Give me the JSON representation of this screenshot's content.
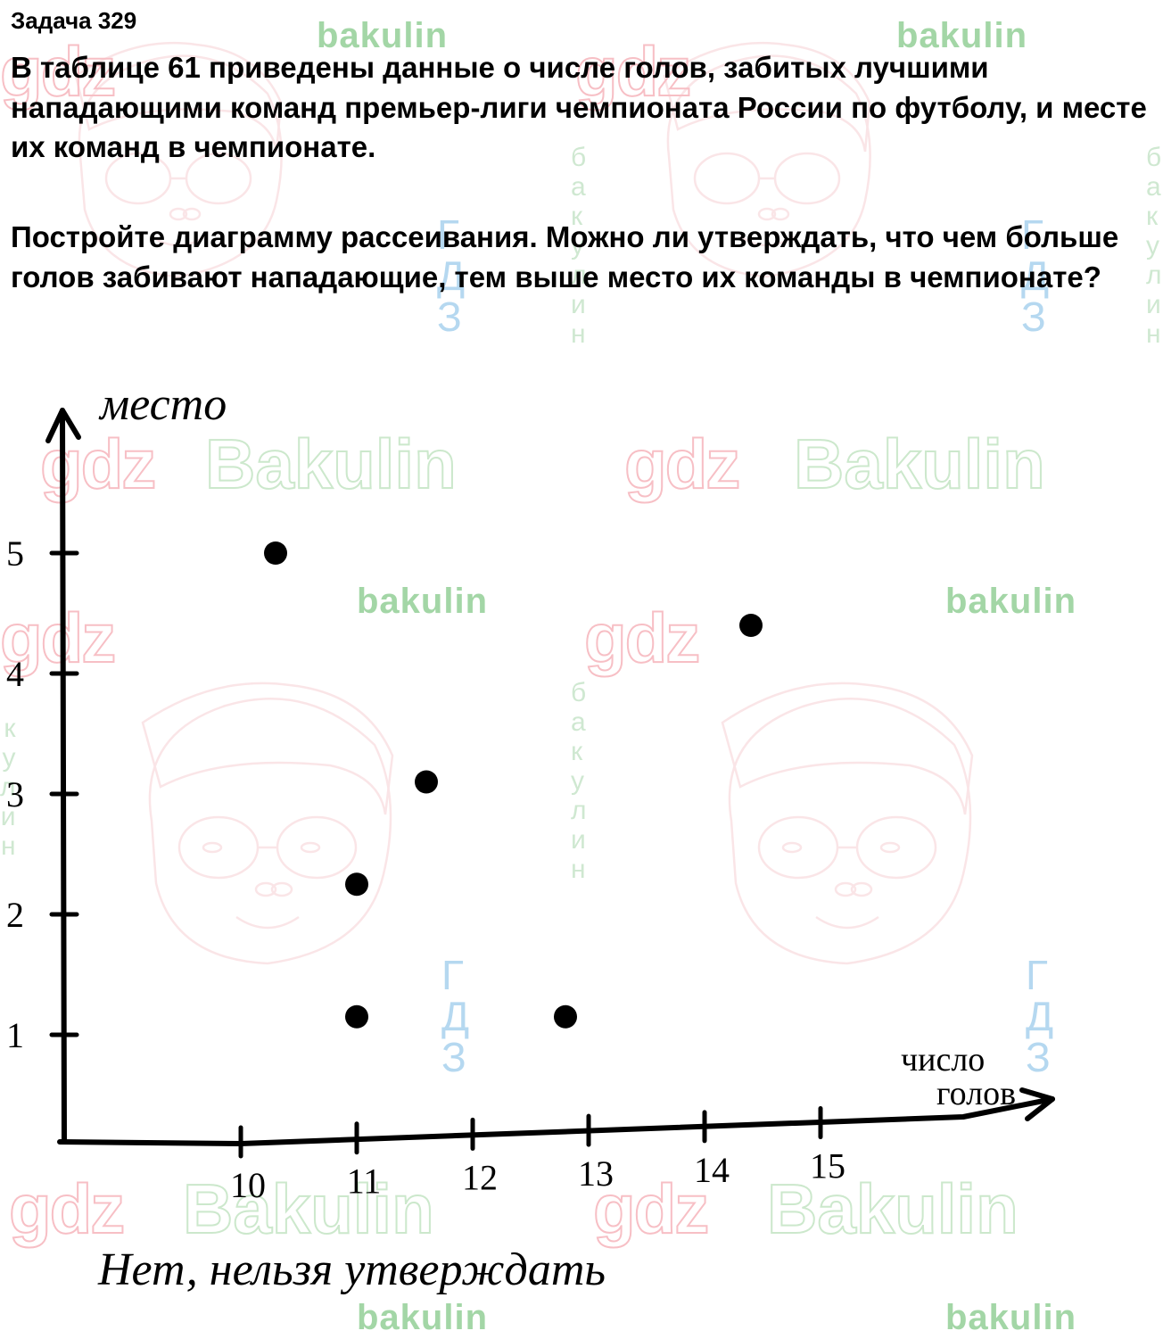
{
  "title": "Задача 329",
  "problem": "В таблице 61 приведены данные о числе голов, забитых лучшими нападающими команд премьер-лиги чемпионата России по футболу, и месте их команд в чемпионате.",
  "question": "Постройте диаграмму рассеивания. Можно ли утверждать, что чем больше голов забивают нападающие, тем выше место их команды в чемпионате?",
  "chart": {
    "type": "scatter",
    "y_label": "место",
    "x_label": "число голов",
    "y_ticks": [
      1,
      2,
      3,
      4,
      5
    ],
    "x_ticks": [
      10,
      11,
      12,
      13,
      14,
      15
    ],
    "points": [
      {
        "x": 10.3,
        "y": 5.0
      },
      {
        "x": 11.0,
        "y": 2.25
      },
      {
        "x": 11.0,
        "y": 1.15
      },
      {
        "x": 11.6,
        "y": 3.1
      },
      {
        "x": 12.8,
        "y": 1.15
      },
      {
        "x": 14.4,
        "y": 4.4
      }
    ],
    "axis_color": "#000000",
    "point_color": "#000000",
    "point_radius": 13,
    "axis_width": 6,
    "tick_font_size": 40,
    "label_font_family": "cursive"
  },
  "answer": "Нет, нельзя утверждать",
  "watermarks": {
    "gdz": "gdz",
    "bakulin_big": "Bakulin",
    "bakulin_small": "bakulin",
    "face_color": "#f5c6cb",
    "gdz_blue_letters": [
      "Г",
      "Д",
      "З"
    ],
    "bakulin_vert_letters": [
      "б",
      "а",
      "к",
      "у",
      "л",
      "и",
      "н"
    ]
  }
}
